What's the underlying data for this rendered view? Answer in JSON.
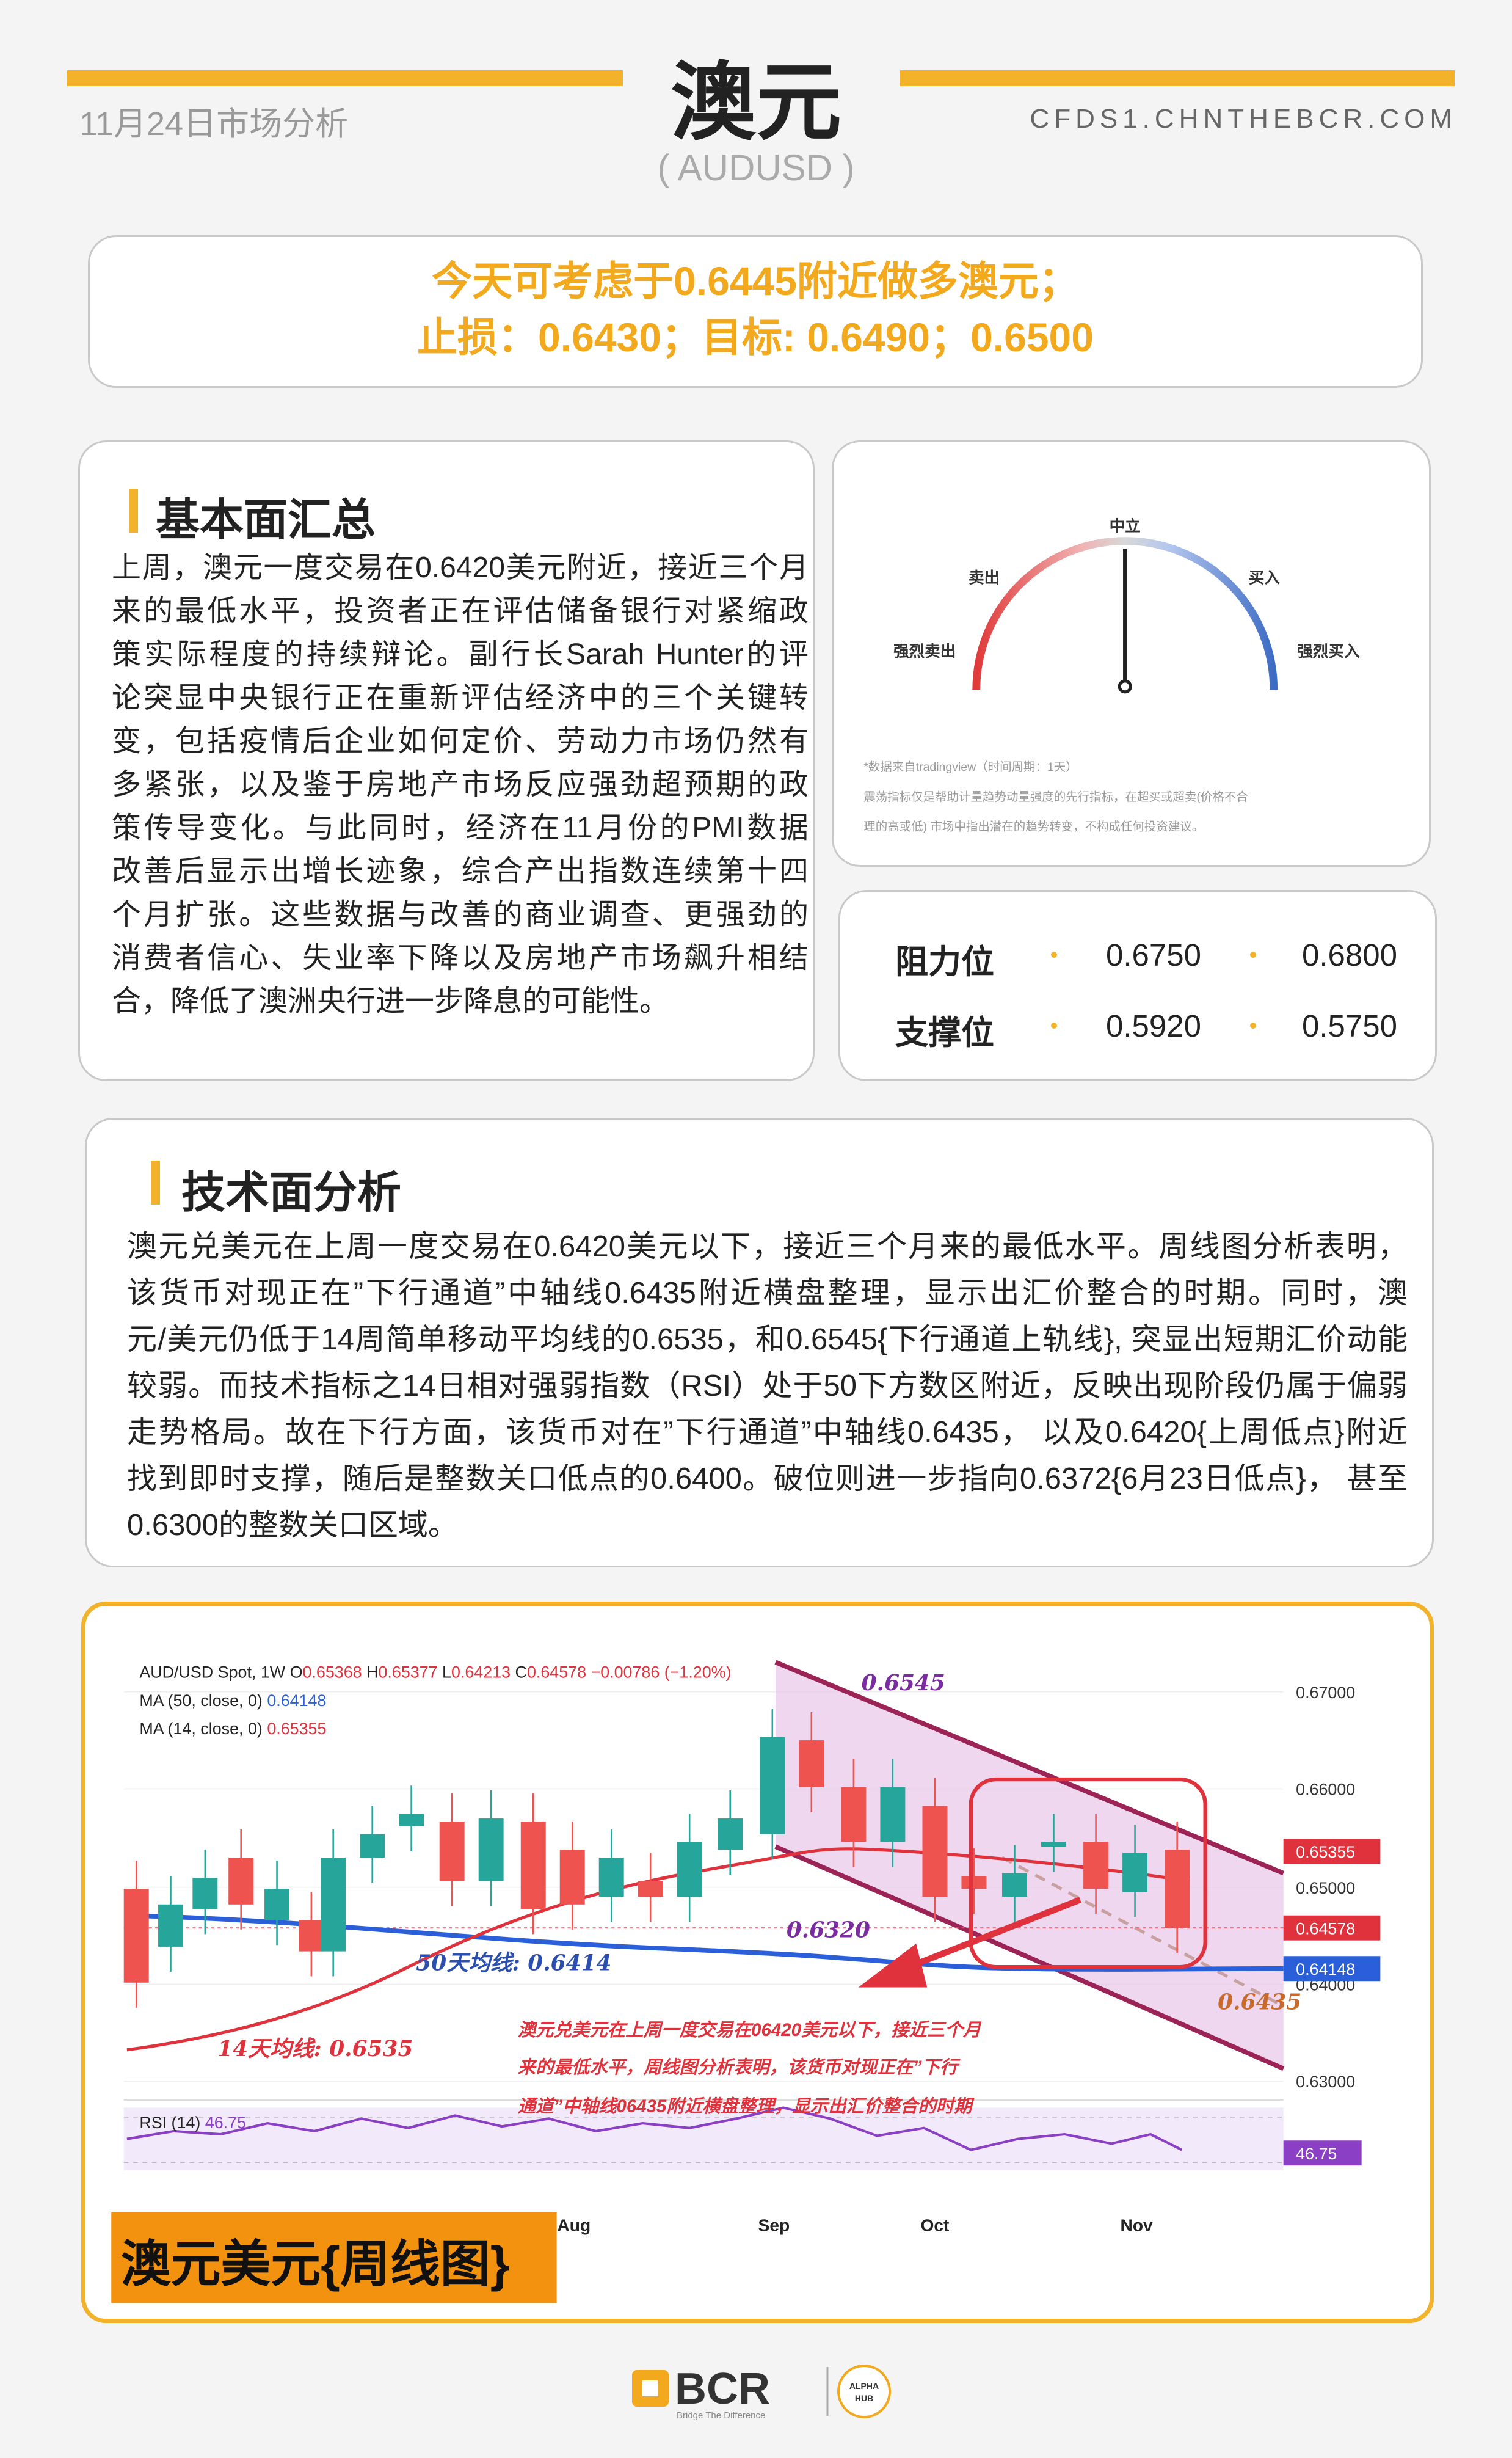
{
  "header": {
    "date": "11月24日市场分析",
    "title": "澳元",
    "subtitle": "( AUDUSD )",
    "website": "CFDS1.CHNTHEBCR.COM"
  },
  "recommendation": {
    "lines": [
      "今天可考虑于0.6445附近做多澳元；",
      "止损：0.6430；目标: 0.6490；0.6500"
    ]
  },
  "fundamentals": {
    "heading": "基本面汇总",
    "lines": [
      "上周，澳元一度交易在0.6420美元附近，接近三个月",
      "来的最低水平，投资者正在评估储备银行对紧缩政",
      "策实际程度的持续辩论。副行长Sarah Hunter的评",
      "论突显中央银行正在重新评估经济中的三个关键转",
      "变，包括疫情后企业如何定价、劳动力市场仍然有",
      "多紧张，以及鉴于房地产市场反应强劲超预期的政",
      "策传导变化。与此同时，经济在11月份的PMI数据",
      "改善后显示出增长迹象，综合产出指数连续第十四",
      "个月扩张。这些数据与改善的商业调查、更强劲的",
      "消费者信心、失业率下降以及房地产市场飙升相结",
      "合，降低了澳洲央行进一步降息的可能性。"
    ]
  },
  "gauge": {
    "neutral": "中立",
    "sell": "卖出",
    "buy": "买入",
    "strong_sell": "强烈卖出",
    "strong_buy": "强烈买入",
    "note": [
      "*数据来自tradingview（时间周期：1天）",
      "震荡指标仅是帮助计量趋势动量强度的先行指标，在超买或超卖(价格不合",
      "理的高或低) 市场中指出潜在的趋势转变，不构成任何投资建议。"
    ]
  },
  "levels": {
    "rows": [
      {
        "label": "阻力位",
        "values": [
          "0.6750",
          "0.6800"
        ]
      },
      {
        "label": "支撑位",
        "values": [
          "0.5920",
          "0.5750"
        ]
      }
    ]
  },
  "technical": {
    "heading": "技术面分析",
    "lines": [
      "澳元兑美元在上周一度交易在0.6420美元以下，接近三个月来的最低水平。周线图分析表明，",
      "该货币对现正在”下行通道”中轴线0.6435附近横盘整理，显示出汇价整合的时期。同时，澳",
      "元/美元仍低于14周简单移动平均线的0.6535，和0.6545{下行通道上轨线}, 突显出短期汇价动能",
      "较弱。而技术指标之14日相对强弱指数（RSI）处于50下方数区附近，反映出现阶段仍属于偏弱",
      "走势格局。故在下行方面，该货币对在”下行通道”中轴线0.6435， 以及0.6420{上周低点}附近",
      "找到即时支撑，随后是整数关口低点的0.6400。破位则进一步指向0.6372{6月23日低点}， 甚至",
      "0.6300的整数关口区域。"
    ]
  },
  "chart": {
    "symbol": "AUD/USD Spot, 1W",
    "ohlc": [
      {
        "label": "O",
        "value": "0.65368"
      },
      {
        "label": "H",
        "value": "0.65377"
      },
      {
        "label": "L",
        "value": "0.64213"
      },
      {
        "label": "C",
        "value": "0.64578"
      }
    ],
    "change": "−0.00786 (−1.20%)",
    "ma50": {
      "label": "MA (50, close, 0)",
      "value": "0.64148"
    },
    "ma14": {
      "label": "MA (14, close, 0)",
      "value": "0.65355"
    },
    "price_axis": [
      "0.67000",
      "0.66000",
      "0.65000",
      "0.64000",
      "0.63000"
    ],
    "tags": {
      "ma14": "0.65355",
      "close": "0.64578",
      "ma50": "0.64148",
      "rsi": "46.75"
    },
    "rsi": {
      "label": "RSI (14)",
      "value": "46.75"
    },
    "months": [
      "Aug",
      "Sep",
      "Oct",
      "Nov"
    ],
    "notes": {
      "upper": "0.6545",
      "low": "0.6320",
      "ma50": "50天均线: 0.6414",
      "ma14": "14天均线: 0.6535",
      "mid": "0.6435"
    },
    "annotation": [
      "澳元兑美元在上周一度交易在06420美元以下，接近三个月",
      "来的最低水平，周线图分析表明，该货币对现正在”下行",
      "通道”中轴线06435附近横盘整理，显示出汇价整合的时期"
    ],
    "caption": "澳元美元{周线图}"
  },
  "footer": {
    "brand": "BCR",
    "tagline": "Bridge The Difference",
    "badge": [
      "ALPHA",
      "HUB"
    ]
  }
}
